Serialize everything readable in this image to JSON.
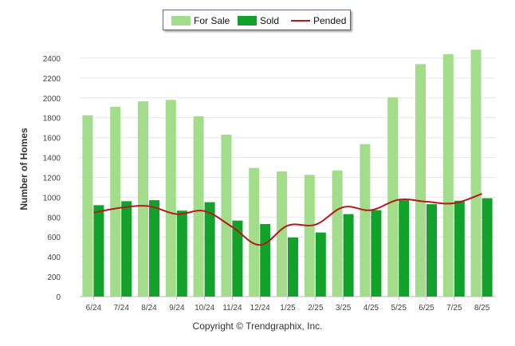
{
  "chart_data": {
    "type": "bar",
    "categories": [
      "6/24",
      "7/24",
      "8/24",
      "9/24",
      "10/24",
      "11/24",
      "12/24",
      "1/25",
      "2/25",
      "3/25",
      "4/25",
      "5/25",
      "6/25",
      "7/25",
      "8/25"
    ],
    "series": [
      {
        "name": "For Sale",
        "type": "bar",
        "color": "#a3dc8a",
        "values": [
          1825,
          1910,
          1965,
          1980,
          1815,
          1630,
          1295,
          1260,
          1225,
          1270,
          1535,
          2005,
          2340,
          2440,
          2485
        ]
      },
      {
        "name": "Sold",
        "type": "bar",
        "color": "#12a12b",
        "values": [
          920,
          960,
          970,
          865,
          950,
          765,
          730,
          595,
          645,
          830,
          870,
          970,
          930,
          965,
          990
        ]
      },
      {
        "name": "Pended",
        "type": "line",
        "color": "#b31b1b",
        "values": [
          845,
          895,
          910,
          830,
          860,
          700,
          520,
          715,
          725,
          900,
          870,
          975,
          955,
          940,
          1035
        ]
      }
    ],
    "ylabel": "Number of Homes",
    "xlabel": "",
    "ylim": [
      0,
      2600
    ],
    "yticks": [
      0,
      200,
      400,
      600,
      800,
      1000,
      1200,
      1400,
      1600,
      1800,
      2000,
      2200,
      2400
    ],
    "grid": true,
    "legend_placement": "top-center"
  },
  "legend": {
    "for_sale": "For Sale",
    "sold": "Sold",
    "pended": "Pended"
  },
  "footer": {
    "copyright": "Copyright © Trendgraphix, Inc."
  }
}
